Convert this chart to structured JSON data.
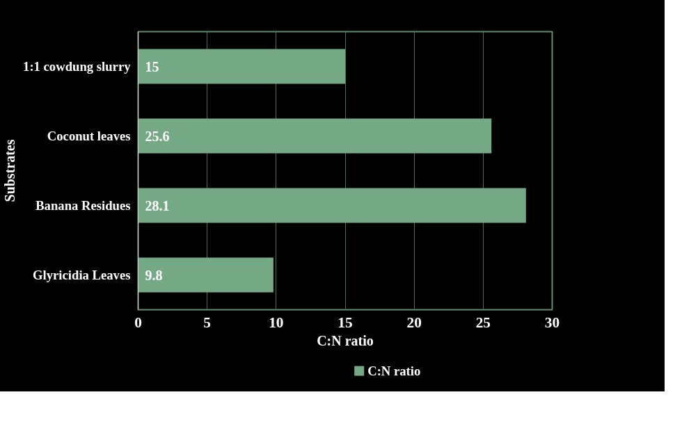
{
  "chart_data": {
    "type": "bar",
    "orientation": "horizontal",
    "categories": [
      "1:1 cowdung slurry",
      "Coconut leaves",
      "Banana Residues",
      "Glyricidia Leaves"
    ],
    "series": [
      {
        "name": "C:N ratio",
        "color": "#75a884",
        "values": [
          15,
          25.6,
          28.1,
          9.8
        ]
      }
    ],
    "xlabel": "C:N ratio",
    "ylabel": "Substrates",
    "xlim": [
      0,
      30
    ],
    "xticks": [
      0,
      5,
      10,
      15,
      20,
      25,
      30
    ],
    "grid": "x",
    "legend": "bottom",
    "data_labels": true
  }
}
